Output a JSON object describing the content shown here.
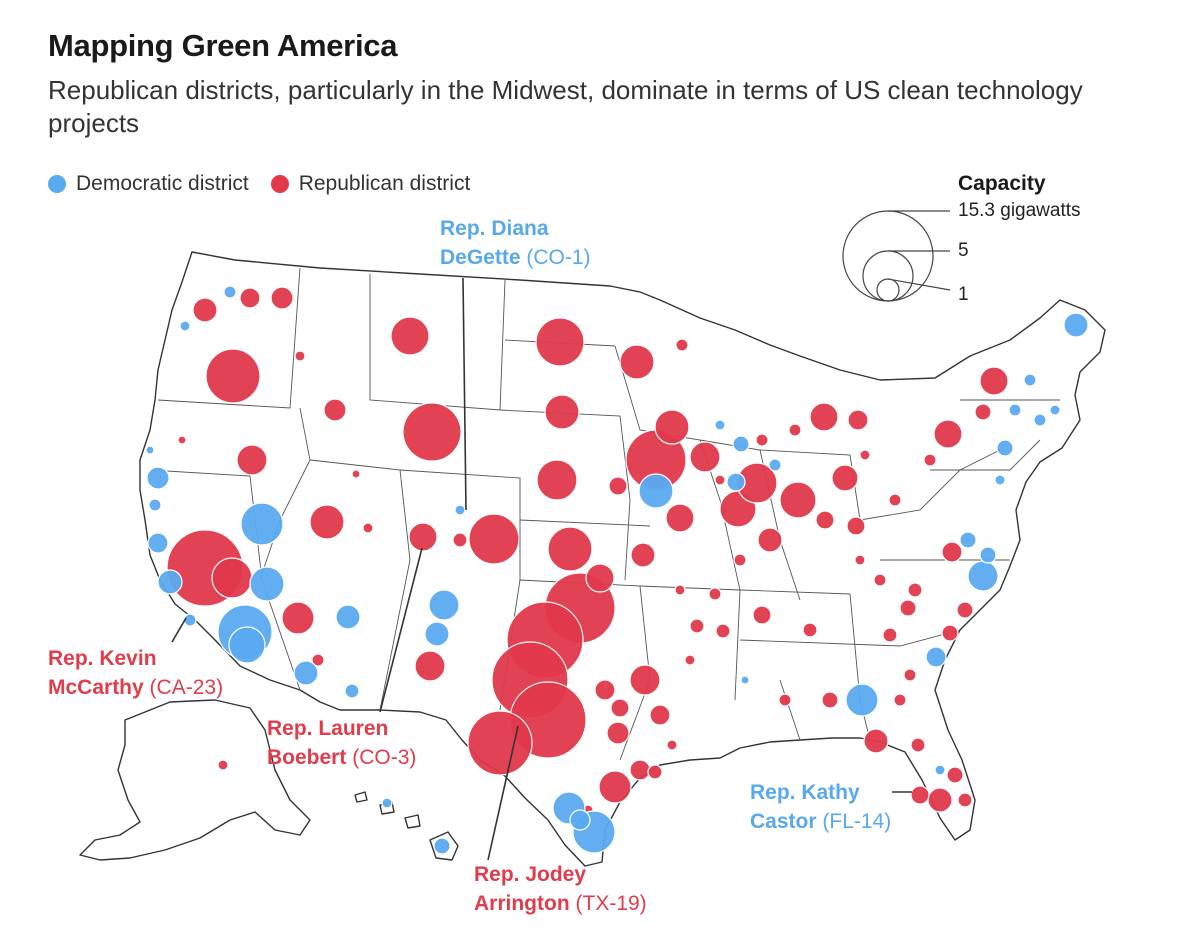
{
  "title": "Mapping Green America",
  "subtitle": "Republican districts, particularly in the Midwest, dominate in terms of US clean technology projects",
  "legend": {
    "dem": {
      "label": "Democratic district",
      "color": "#5aaaf0"
    },
    "rep": {
      "label": "Republican district",
      "color": "#e0394b"
    }
  },
  "capacity": {
    "title": "Capacity",
    "labels": [
      "15.3 gigawatts",
      "5",
      "1"
    ]
  },
  "annotations": {
    "degette": {
      "line1": "Rep. Diana",
      "line2": "DeGette",
      "code": "(CO-1)"
    },
    "mccarthy": {
      "line1": "Rep. Kevin",
      "line2": "McCarthy",
      "code": "(CA-23)"
    },
    "boebert": {
      "line1": "Rep. Lauren",
      "line2": "Boebert",
      "code": "(CO-3)"
    },
    "arrington": {
      "line1": "Rep. Jodey",
      "line2": "Arrington",
      "code": "(TX-19)"
    },
    "castor": {
      "line1": "Rep. Kathy",
      "line2": "Castor",
      "code": "(FL-14)"
    }
  }
}
